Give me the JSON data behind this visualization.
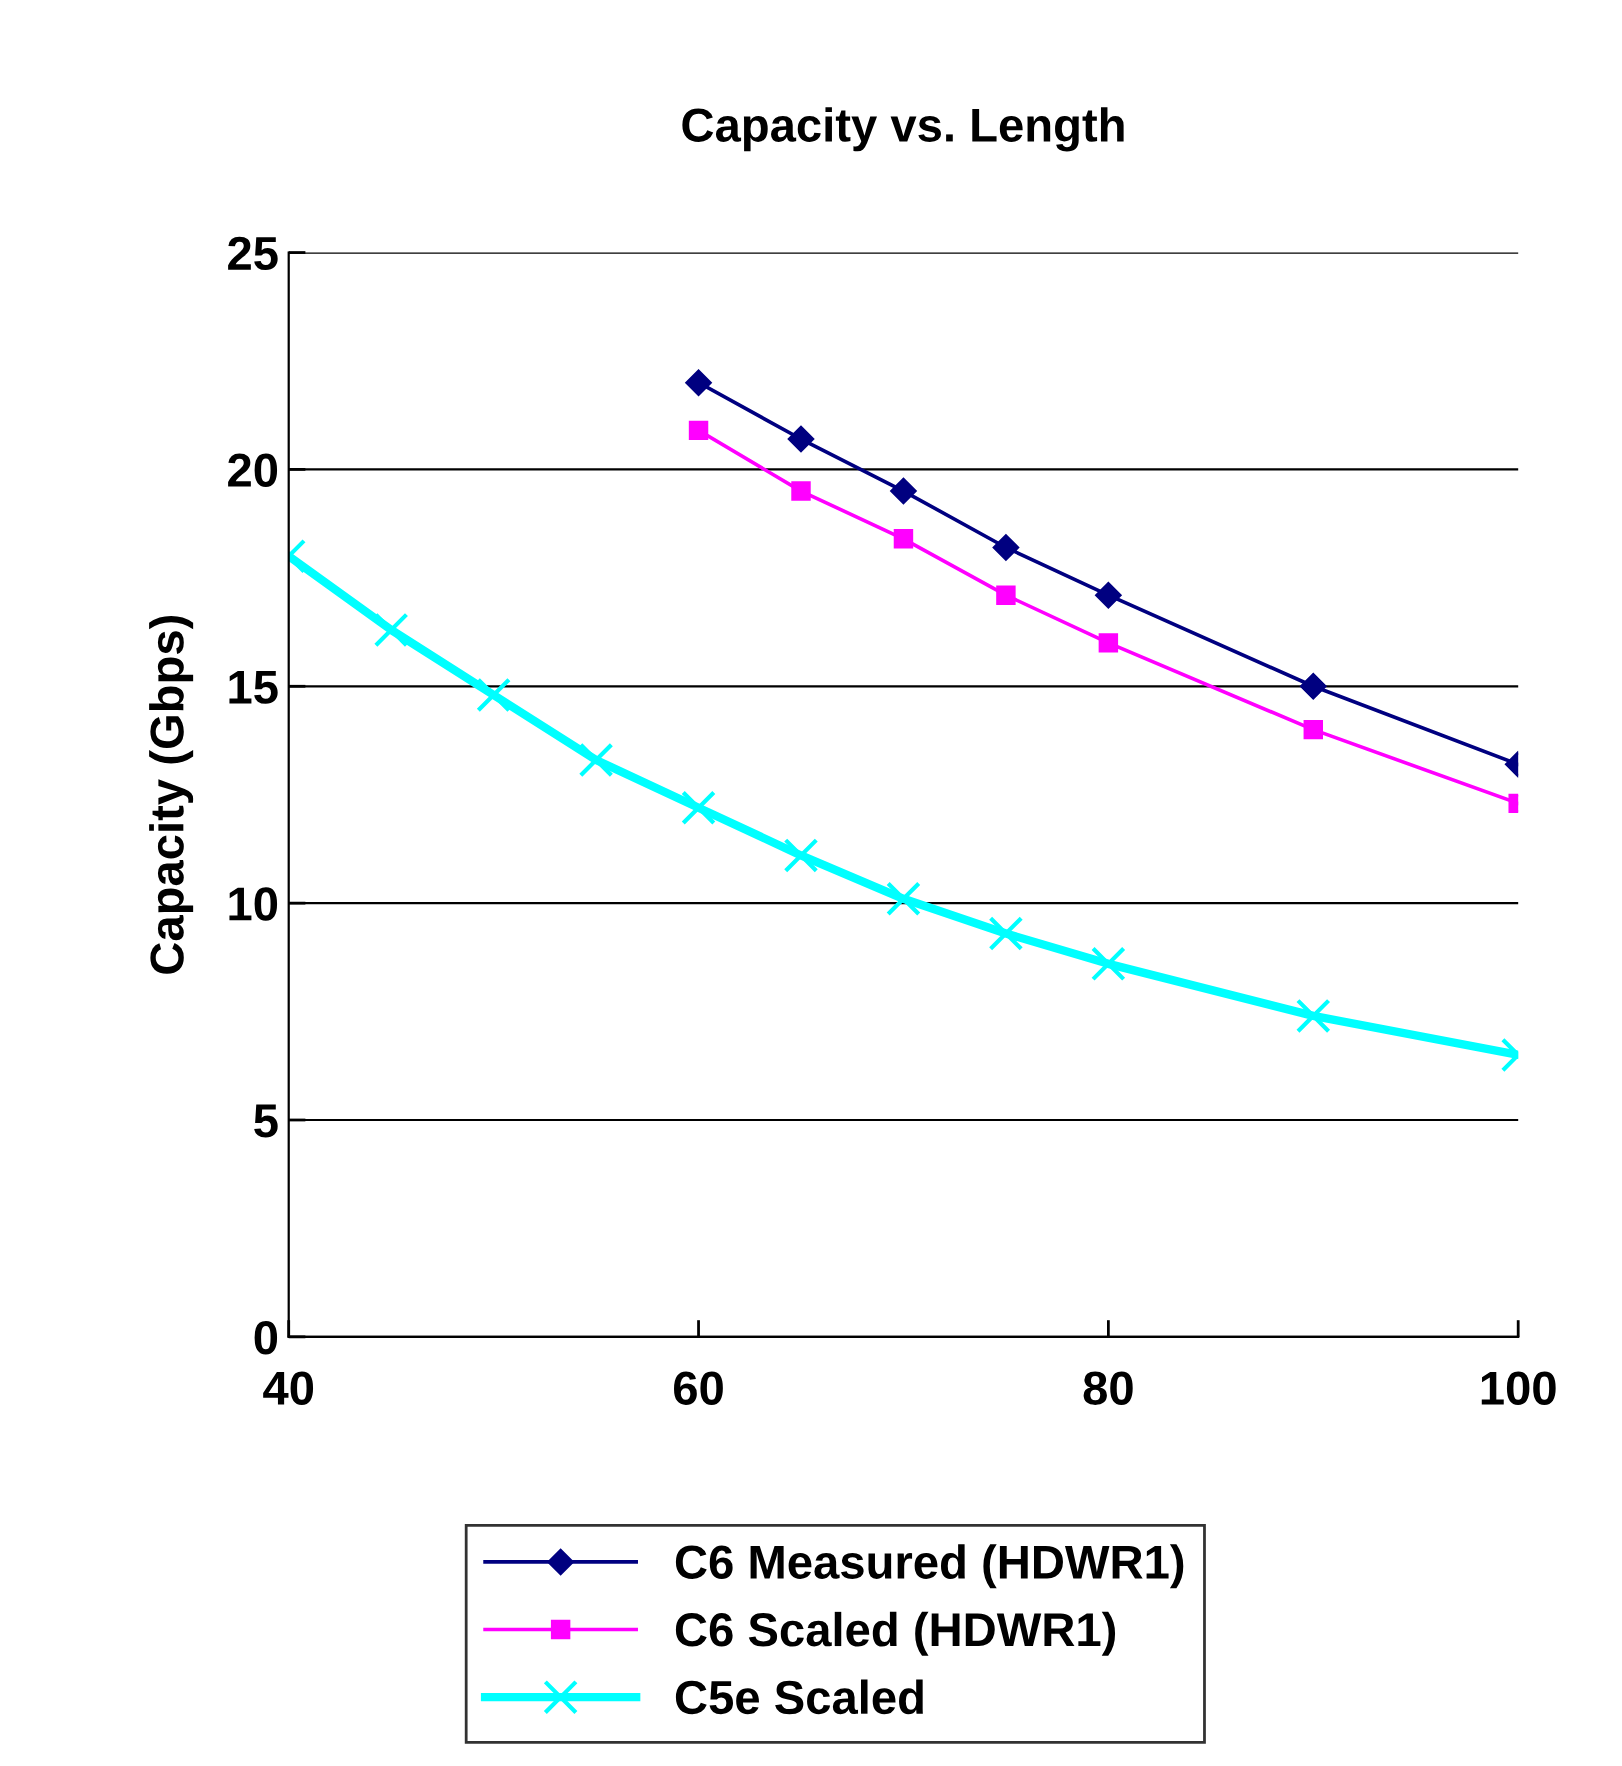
{
  "chart_data": {
    "type": "line",
    "title": "Capacity vs. Length",
    "ylabel": "Capacity (Gbps)",
    "xlim": [
      40,
      100
    ],
    "xticks": [
      40,
      60,
      80,
      100
    ],
    "ylim": [
      0,
      25
    ],
    "yticks": [
      0,
      5,
      10,
      15,
      20,
      25
    ],
    "grid": "y",
    "legend": "bottom",
    "series": [
      {
        "name": "C6 Measured (HDWR1)",
        "color": "#000080",
        "marker": "diamond",
        "x": [
          60,
          65,
          70,
          75,
          80,
          90,
          100
        ],
        "values": [
          22.0,
          20.7,
          19.5,
          18.2,
          17.1,
          15.0,
          13.2
        ]
      },
      {
        "name": "C6 Scaled (HDWR1)",
        "color": "#ff00ff",
        "marker": "square",
        "x": [
          60,
          65,
          70,
          75,
          80,
          90,
          100
        ],
        "values": [
          20.9,
          19.5,
          18.4,
          17.1,
          16.0,
          14.0,
          12.3
        ]
      },
      {
        "name": "C5e Scaled",
        "color": "#00ffff",
        "marker": "cross",
        "x": [
          40,
          45,
          50,
          55,
          60,
          65,
          70,
          75,
          80,
          90,
          100
        ],
        "values": [
          18.0,
          16.3,
          14.8,
          13.3,
          12.2,
          11.1,
          10.1,
          9.3,
          8.6,
          7.4,
          6.5
        ]
      }
    ]
  }
}
